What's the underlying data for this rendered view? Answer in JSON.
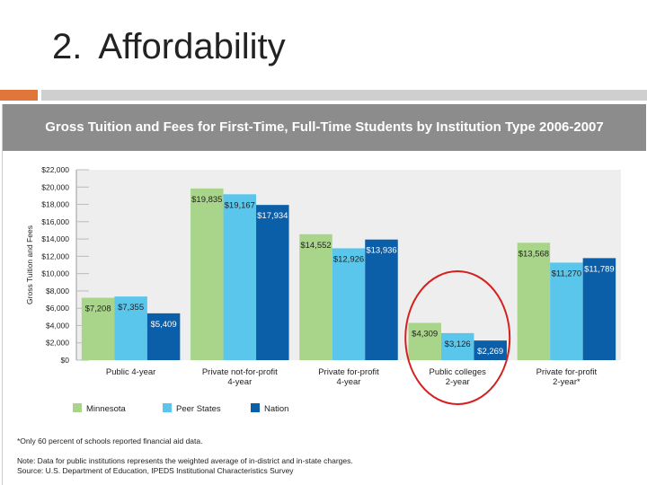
{
  "slide": {
    "number": "2.",
    "title": "Affordability",
    "accent_color": "#e0763a"
  },
  "chart_data": {
    "type": "bar",
    "title": "Gross Tuition and Fees for First-Time, Full-Time Students by Institution Type 2006-2007",
    "ylabel": "Gross Tuition and Fees",
    "xlabel": "",
    "ylim": [
      0,
      22000
    ],
    "ytick_values": [
      0,
      2000,
      4000,
      6000,
      8000,
      10000,
      12000,
      14000,
      16000,
      18000,
      20000,
      22000
    ],
    "ytick_labels": [
      "$0",
      "$2,000",
      "$4,000",
      "$6,000",
      "$8,000",
      "$10,000",
      "$12,000",
      "$14,000",
      "$16,000",
      "$18,000",
      "$20,000",
      "$22,000"
    ],
    "categories": [
      [
        "Public 4-year"
      ],
      [
        "Private not-for-profit",
        "4-year"
      ],
      [
        "Private for-profit",
        "4-year"
      ],
      [
        "Public colleges",
        "2-year"
      ],
      [
        "Private for-profit",
        "2-year*"
      ]
    ],
    "series": [
      {
        "name": "Minnesota",
        "color": "#a9d58a",
        "values": [
          7208,
          19835,
          14552,
          4309,
          13568
        ],
        "labels": [
          "$7,208",
          "$19,835",
          "$14,552",
          "$4,309",
          "$13,568"
        ]
      },
      {
        "name": "Peer States",
        "color": "#5bc6ec",
        "values": [
          7355,
          19167,
          12926,
          3126,
          11270
        ],
        "labels": [
          "$7,355",
          "$19,167",
          "$12,926",
          "$3,126",
          "$11,270"
        ]
      },
      {
        "name": "Nation",
        "color": "#0b5ea8",
        "values": [
          5409,
          17934,
          13936,
          2269,
          11789
        ],
        "labels": [
          "$5,409",
          "$17,934",
          "$13,936",
          "$2,269",
          "$11,789"
        ]
      }
    ],
    "legend_placement": "bottom-left",
    "grid": false,
    "highlight": {
      "category_index": 3,
      "shape": "circle",
      "color": "#d42020"
    },
    "footnotes": [
      "*Only 60 percent of schools reported financial aid data.",
      "Note: Data for public institutions represents the weighted average of in-district and in-state charges.",
      "Source: U.S. Department of Education, IPEDS Institutional Characteristics Survey"
    ]
  }
}
